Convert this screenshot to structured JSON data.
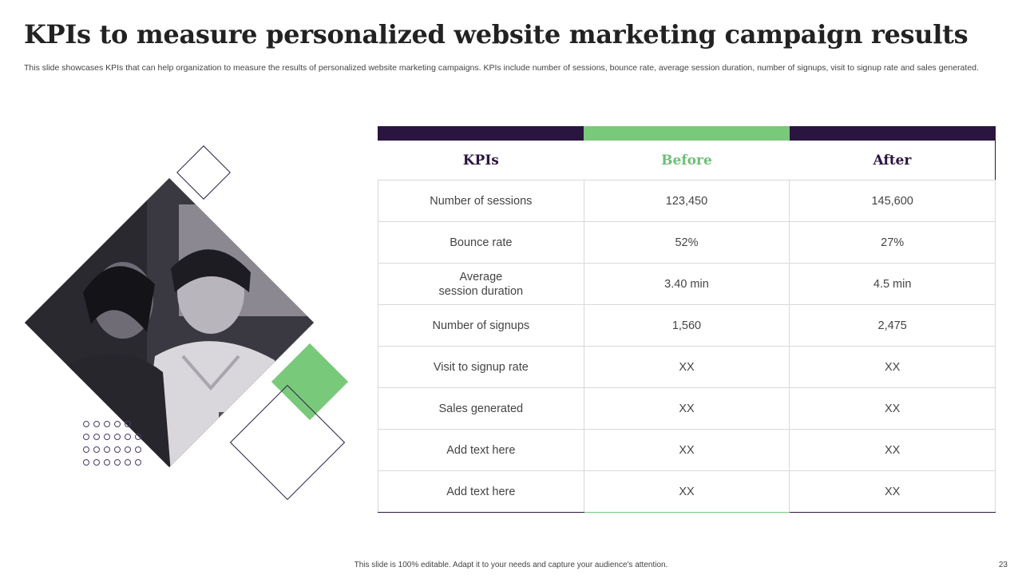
{
  "slide": {
    "title": "KPIs to measure personalized website marketing campaign results",
    "subtitle": "This slide showcases KPIs that can help organization to measure the results of personalized website marketing campaigns. KPIs include number of sessions, bounce rate, average session duration, number of signups, visit to signup rate and sales generated.",
    "footer": "This slide is 100% editable. Adapt it to your needs and capture your audience's attention.",
    "page_number": "23"
  },
  "colors": {
    "dark_purple": "#2a1540",
    "green": "#79c97a"
  },
  "table": {
    "headers": {
      "kpi": "KPIs",
      "before": "Before",
      "after": "After"
    },
    "rows": [
      {
        "kpi": "Number of sessions",
        "before": "123,450",
        "after": "145,600"
      },
      {
        "kpi": "Bounce rate",
        "before": "52%",
        "after": "27%"
      },
      {
        "kpi": "Average\nsession duration",
        "before": "3.40 min",
        "after": "4.5 min"
      },
      {
        "kpi": "Number of signups",
        "before": "1,560",
        "after": "2,475"
      },
      {
        "kpi": "Visit to signup rate",
        "before": "XX",
        "after": "XX"
      },
      {
        "kpi": "Sales generated",
        "before": "XX",
        "after": "XX"
      },
      {
        "kpi": "Add text here",
        "before": "XX",
        "after": "XX"
      },
      {
        "kpi": "Add text here",
        "before": "XX",
        "after": "XX"
      }
    ]
  }
}
